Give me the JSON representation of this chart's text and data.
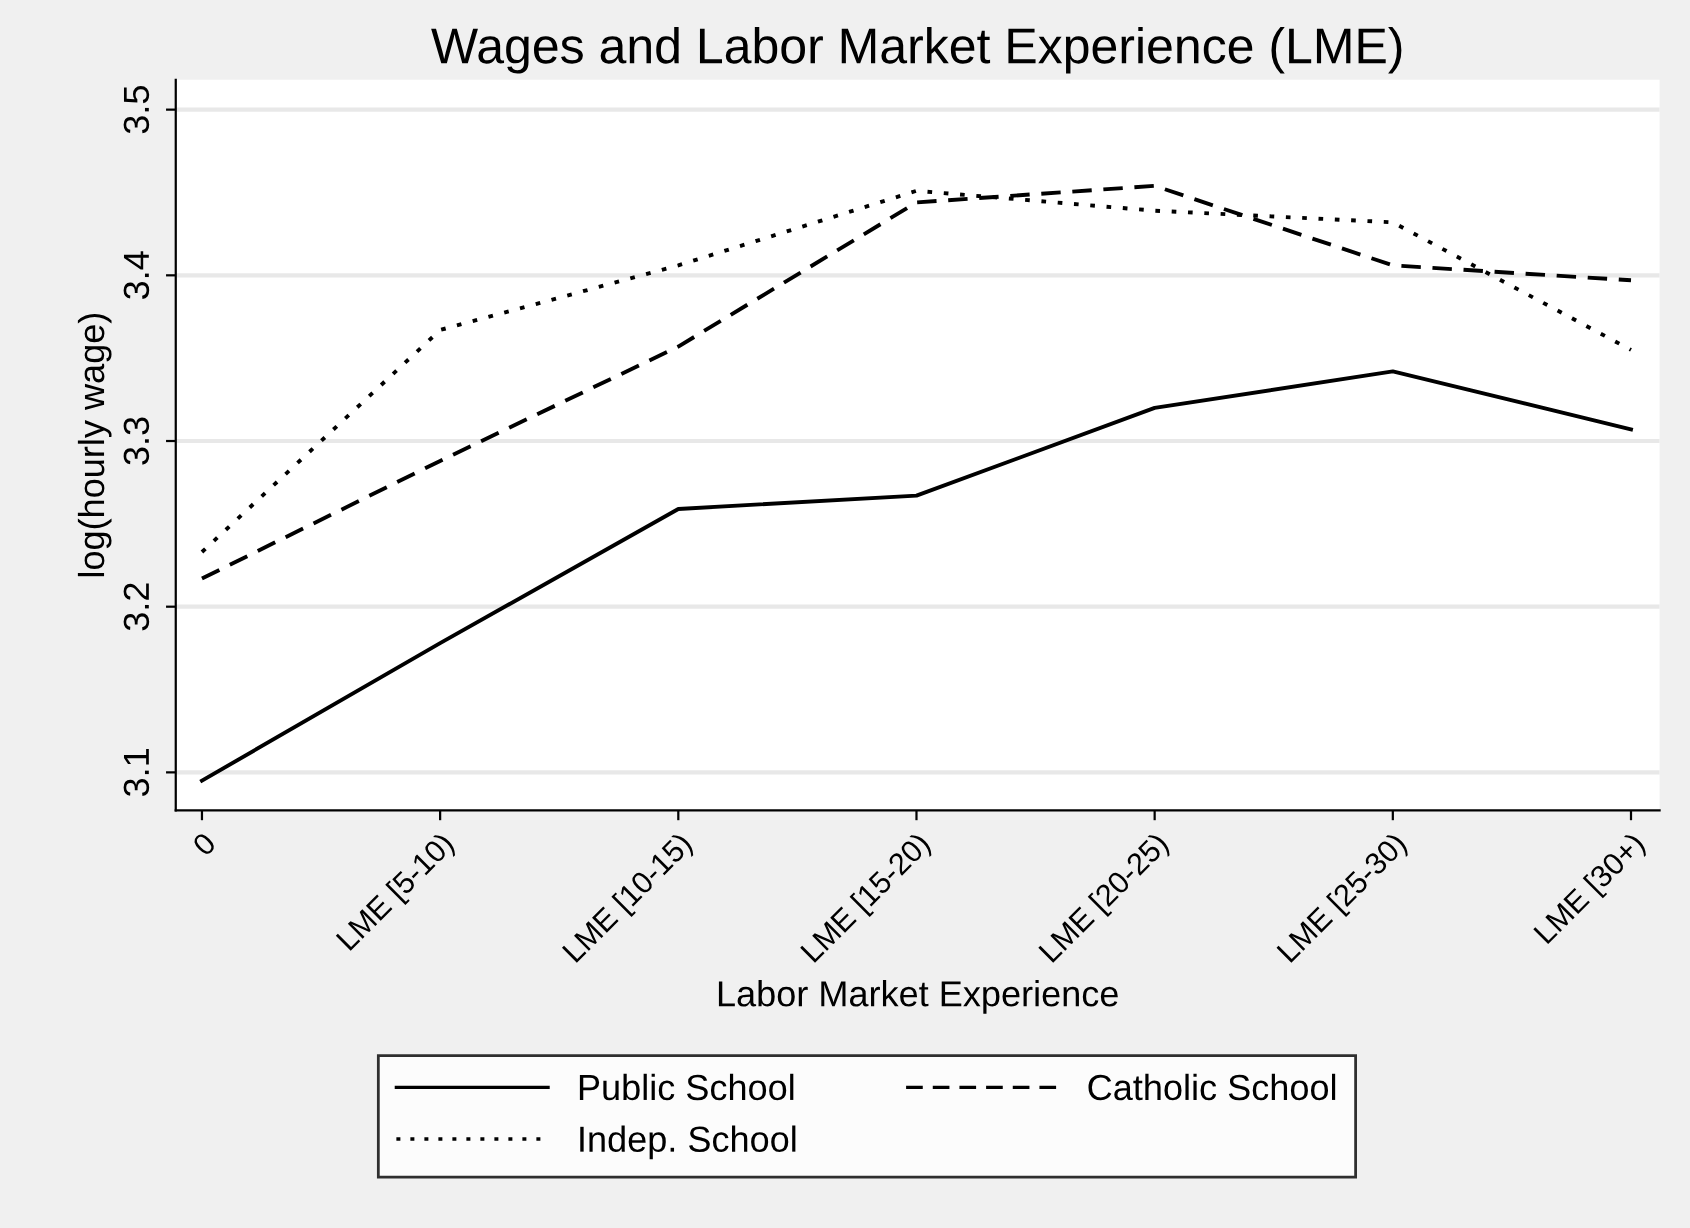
{
  "chart_data": {
    "type": "line",
    "title": "Wages and Labor Market Experience (LME)",
    "xlabel": "Labor Market Experience",
    "ylabel": "log(hourly wage)",
    "categories": [
      "0",
      "LME [5-10)",
      "LME [10-15)",
      "LME [15-20)",
      "LME [20-25)",
      "LME [25-30)",
      "LME [30+)"
    ],
    "series": [
      {
        "name": "Public School",
        "color": "#000000",
        "line_style": "solid",
        "values": [
          3.095,
          3.178,
          3.259,
          3.267,
          3.32,
          3.342,
          3.307
        ]
      },
      {
        "name": "Catholic School",
        "color": "#000000",
        "line_style": "dashed",
        "values": [
          3.217,
          3.288,
          3.357,
          3.444,
          3.454,
          3.406,
          3.397
        ]
      },
      {
        "name": "Indep. School",
        "color": "#000000",
        "line_style": "dotted",
        "values": [
          3.233,
          3.367,
          3.406,
          3.451,
          3.439,
          3.432,
          3.355
        ]
      }
    ],
    "ylim": [
      3.077,
      3.518
    ],
    "yticks": [
      3.1,
      3.2,
      3.3,
      3.4,
      3.5
    ],
    "grid": "y",
    "legend": "bottom",
    "marker": "none"
  }
}
